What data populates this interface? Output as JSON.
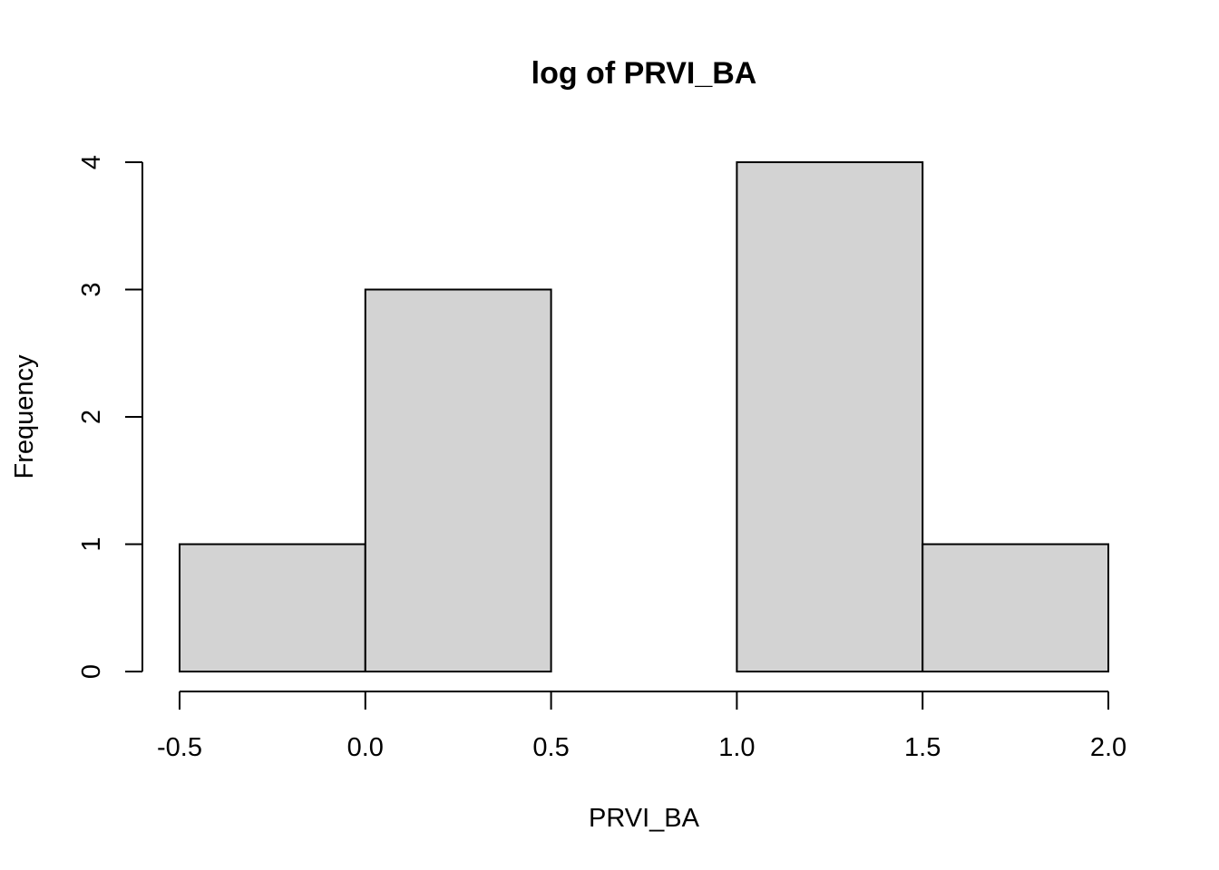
{
  "chart_data": {
    "type": "bar",
    "title": "log of PRVI_BA",
    "xlabel": "PRVI_BA",
    "ylabel": "Frequency",
    "bins": [
      {
        "from": -0.5,
        "to": 0.0,
        "count": 1
      },
      {
        "from": 0.0,
        "to": 0.5,
        "count": 3
      },
      {
        "from": 0.5,
        "to": 1.0,
        "count": 0
      },
      {
        "from": 1.0,
        "to": 1.5,
        "count": 4
      },
      {
        "from": 1.5,
        "to": 2.0,
        "count": 1
      }
    ],
    "xticks": [
      "-0.5",
      "0.0",
      "0.5",
      "1.0",
      "1.5",
      "2.0"
    ],
    "yticks": [
      "0",
      "1",
      "2",
      "3",
      "4"
    ],
    "xlim": [
      -0.5,
      2.0
    ],
    "ylim": [
      0,
      4
    ],
    "bar_fill": "#d3d3d3",
    "grid": false,
    "legend": "none"
  }
}
